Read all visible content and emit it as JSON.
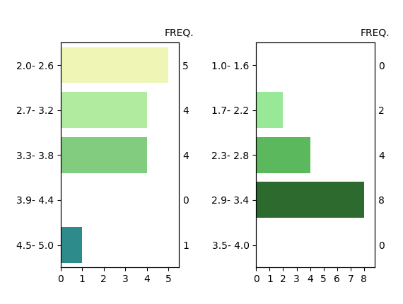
{
  "chart_data": [
    {
      "type": "bar",
      "orientation": "horizontal",
      "categories": [
        "2.0- 2.6",
        "2.7- 3.2",
        "3.3- 3.8",
        "3.9- 4.4",
        "4.5- 5.0"
      ],
      "values": [
        5,
        4,
        4,
        0,
        1
      ],
      "colors": [
        "#eef5b5",
        "#b0eba0",
        "#82cc80",
        "#ffffff",
        "#2d8b8b"
      ],
      "xlim": [
        0,
        5.5
      ],
      "xticks": [
        0,
        1,
        2,
        3,
        4,
        5
      ],
      "y2label": "FREQ.",
      "data_labels": true
    },
    {
      "type": "bar",
      "orientation": "horizontal",
      "categories": [
        "1.0- 1.6",
        "1.7- 2.2",
        "2.3- 2.8",
        "2.9- 3.4",
        "3.5- 4.0"
      ],
      "values": [
        0,
        2,
        4,
        8,
        0
      ],
      "colors": [
        "#ffffff",
        "#98e898",
        "#5cb85c",
        "#2d6a2d",
        "#ffffff"
      ],
      "xlim": [
        0,
        8.8
      ],
      "xticks": [
        0,
        1,
        2,
        3,
        4,
        5,
        6,
        7,
        8
      ],
      "y2label": "FREQ.",
      "data_labels": true
    }
  ]
}
